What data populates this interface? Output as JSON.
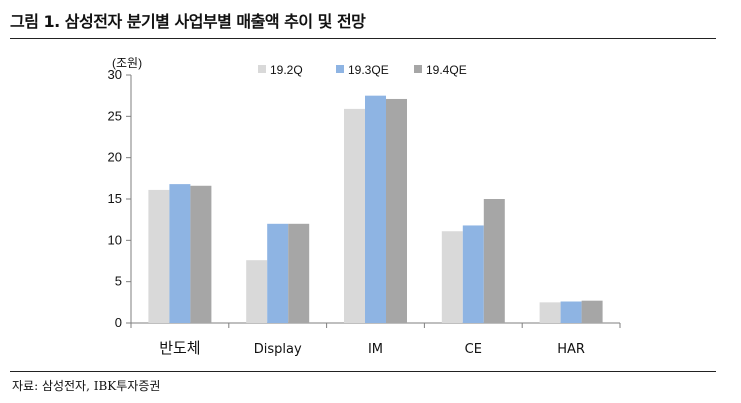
{
  "header": {
    "title": "그림 1. 삼성전자 분기별 사업부별 매출액 추이 및 전망"
  },
  "footer": {
    "source": "자료: 삼성전자, IBK투자증권"
  },
  "chart_data": {
    "type": "bar",
    "unit_label": "(조원)",
    "categories": [
      "반도체",
      "Display",
      "IM",
      "CE",
      "HAR"
    ],
    "series": [
      {
        "name": "19.2Q",
        "color": "#d9d9d9",
        "values": [
          16.1,
          7.6,
          25.9,
          11.1,
          2.5
        ]
      },
      {
        "name": "19.3QE",
        "color": "#8eb4e3",
        "values": [
          16.8,
          12.0,
          27.5,
          11.8,
          2.6
        ]
      },
      {
        "name": "19.4QE",
        "color": "#a6a6a6",
        "values": [
          16.6,
          12.0,
          27.1,
          15.0,
          2.7
        ]
      }
    ],
    "ylim": [
      0,
      30
    ],
    "yticks": [
      0,
      5,
      10,
      15,
      20,
      25,
      30
    ],
    "legend_position": "top",
    "grid": false
  }
}
